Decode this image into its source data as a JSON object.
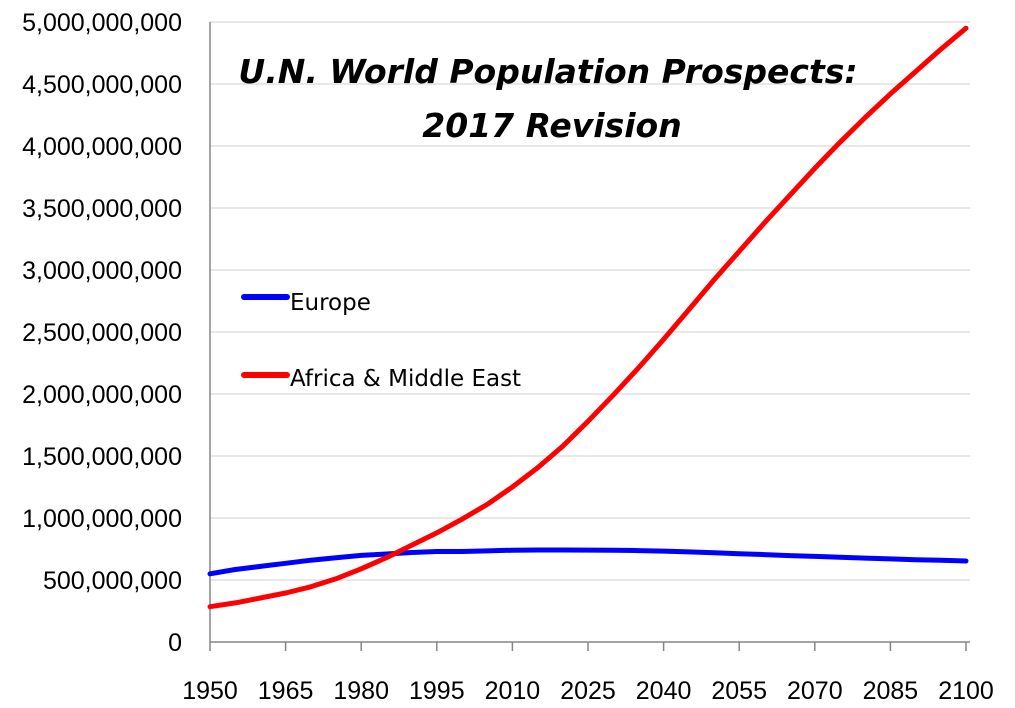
{
  "chart_data": {
    "type": "line",
    "title": "U.N. World Population Prospects:",
    "subtitle": "2017 Revision",
    "xlabel": "",
    "ylabel": "",
    "xlim": [
      1950,
      2100
    ],
    "ylim": [
      0,
      5000000000
    ],
    "x_ticks": [
      1950,
      1965,
      1980,
      1995,
      2010,
      2025,
      2040,
      2055,
      2070,
      2085,
      2100
    ],
    "x_tick_labels": [
      "1950",
      "1965",
      "1980",
      "1995",
      "2010",
      "2025",
      "2040",
      "2055",
      "2070",
      "2085",
      "2100"
    ],
    "y_ticks": [
      0,
      500000000,
      1000000000,
      1500000000,
      2000000000,
      2500000000,
      3000000000,
      3500000000,
      4000000000,
      4500000000,
      5000000000
    ],
    "y_tick_labels": [
      "0",
      "500,000,000",
      "1,000,000,000",
      "1,500,000,000",
      "2,000,000,000",
      "2,500,000,000",
      "3,000,000,000",
      "3,500,000,000",
      "4,000,000,000",
      "4,500,000,000",
      "5,000,000,000"
    ],
    "grid": "horizontal",
    "legend_position": "left",
    "x": [
      1950,
      1955,
      1960,
      1965,
      1970,
      1975,
      1980,
      1985,
      1990,
      1995,
      2000,
      2005,
      2010,
      2015,
      2020,
      2025,
      2030,
      2035,
      2040,
      2045,
      2050,
      2055,
      2060,
      2065,
      2070,
      2075,
      2080,
      2085,
      2090,
      2095,
      2100
    ],
    "series": [
      {
        "name": "Europe",
        "color": "#0000ff",
        "values": [
          550000000,
          585000000,
          610000000,
          635000000,
          660000000,
          680000000,
          698000000,
          710000000,
          722000000,
          730000000,
          730000000,
          735000000,
          740000000,
          742000000,
          742000000,
          741000000,
          740000000,
          737000000,
          733000000,
          727000000,
          720000000,
          712000000,
          705000000,
          697000000,
          690000000,
          683000000,
          677000000,
          670000000,
          664000000,
          659000000,
          653000000
        ]
      },
      {
        "name": "Africa & Middle East",
        "color": "#ff0000",
        "values": [
          285000000,
          315000000,
          355000000,
          395000000,
          445000000,
          510000000,
          590000000,
          680000000,
          780000000,
          880000000,
          990000000,
          1110000000,
          1250000000,
          1405000000,
          1580000000,
          1780000000,
          1990000000,
          2210000000,
          2440000000,
          2680000000,
          2920000000,
          3150000000,
          3380000000,
          3600000000,
          3820000000,
          4030000000,
          4230000000,
          4420000000,
          4600000000,
          4780000000,
          4950000000
        ]
      }
    ]
  }
}
